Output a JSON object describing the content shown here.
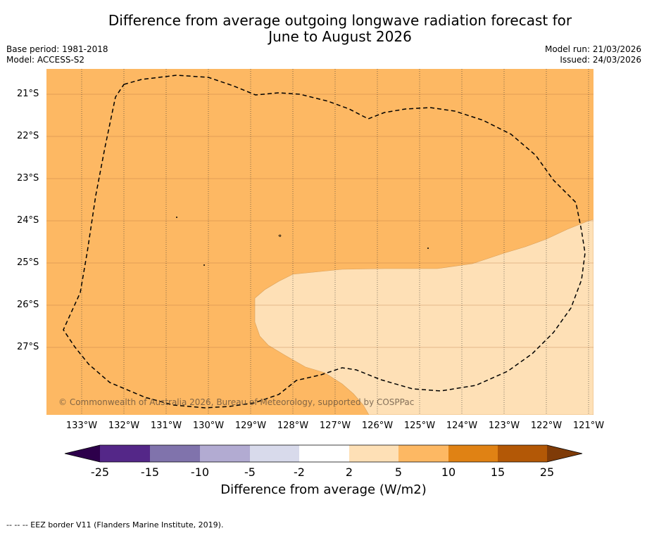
{
  "title_line1": "Difference from average outgoing longwave radiation forecast for",
  "title_line2": "June to August 2026",
  "base_period": "Base period: 1981-2018",
  "model": "Model: ACCESS-S2",
  "model_run": "Model run: 21/03/2026",
  "issued": "Issued: 24/03/2026",
  "lat_labels": [
    "21°S",
    "22°S",
    "23°S",
    "24°S",
    "25°S",
    "26°S",
    "27°S"
  ],
  "lon_labels": [
    "133°W",
    "132°W",
    "131°W",
    "130°W",
    "129°W",
    "128°W",
    "127°W",
    "126°W",
    "125°W",
    "124°W",
    "123°W",
    "122°W",
    "121°W"
  ],
  "colorbar": {
    "ticks": [
      "-25",
      "-15",
      "-10",
      "-5",
      "-2",
      "2",
      "5",
      "10",
      "15",
      "25"
    ],
    "colors": {
      "lt_-25": "#2d004b",
      "-25_-15": "#542788",
      "-15_-10": "#8073ac",
      "-10_-5": "#b2abd2",
      "-5_-2": "#d8daeb",
      "-2_2": "#ffffff",
      "2_5": "#fee0b6",
      "5_10": "#fdb863",
      "10_15": "#e08214",
      "15_25": "#b35806",
      "gt_25": "#7f3b08"
    },
    "label": "Difference from average (W/m2)"
  },
  "copyright": "© Commonwealth of Australia 2026, Bureau of Meteorology, supported by COSPPac",
  "footer": "-- -- -- EEZ border V11 (Flanders Marine Institute, 2019)."
}
